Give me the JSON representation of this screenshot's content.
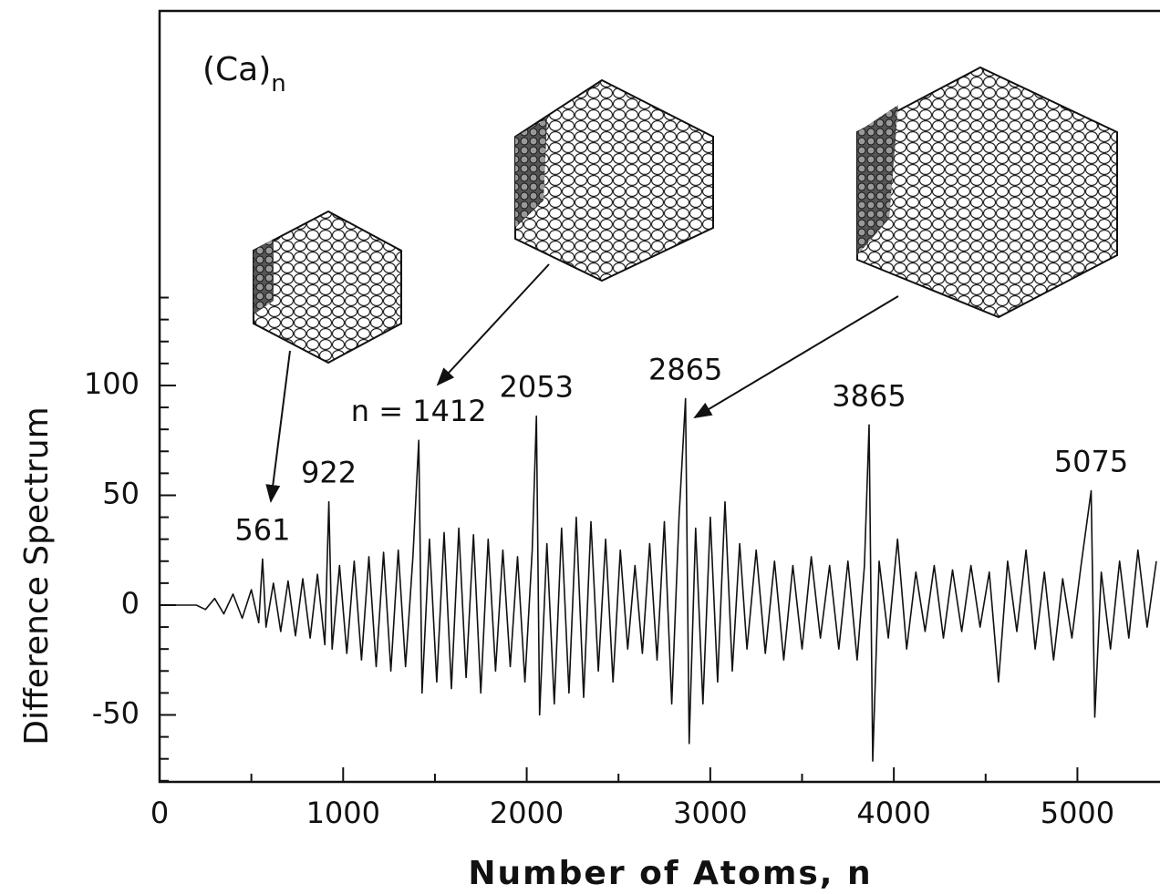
{
  "chart_data": {
    "type": "line",
    "title": "(Ca)",
    "title_subscript": "n",
    "x_label": "Number of Atoms, n",
    "y_label": "Difference Spectrum",
    "xlim": [
      0,
      5450
    ],
    "ylim": [
      -80.5,
      270.5
    ],
    "xticks": [
      0,
      1000,
      2000,
      3000,
      4000,
      5000
    ],
    "yticks": [
      -50,
      0,
      50,
      100
    ],
    "xminorticks": [
      500,
      1500,
      2500,
      3500,
      4500
    ],
    "yminorticks": [
      -80,
      -70,
      -60,
      -40,
      -30,
      -20,
      -10,
      10,
      20,
      30,
      40,
      60,
      70,
      80,
      90,
      110,
      120,
      130,
      140
    ],
    "color": "#111111",
    "annotations": [
      {
        "text": "561",
        "x": 561
      },
      {
        "text": "922",
        "x": 922
      },
      {
        "text": "n = 1412",
        "x": 1412
      },
      {
        "text": "2053",
        "x": 2053
      },
      {
        "text": "2865",
        "x": 2865
      },
      {
        "text": "3865",
        "x": 3865
      },
      {
        "text": "5075",
        "x": 5075
      }
    ],
    "x": [
      0,
      200,
      250,
      300,
      350,
      400,
      450,
      500,
      540,
      561,
      580,
      620,
      660,
      700,
      740,
      780,
      820,
      860,
      900,
      922,
      940,
      980,
      1020,
      1060,
      1100,
      1140,
      1180,
      1220,
      1260,
      1300,
      1340,
      1380,
      1412,
      1430,
      1470,
      1510,
      1550,
      1590,
      1630,
      1670,
      1710,
      1750,
      1790,
      1830,
      1870,
      1910,
      1950,
      1990,
      2030,
      2053,
      2070,
      2110,
      2150,
      2190,
      2230,
      2270,
      2310,
      2350,
      2390,
      2430,
      2470,
      2510,
      2550,
      2590,
      2630,
      2670,
      2710,
      2750,
      2790,
      2830,
      2865,
      2885,
      2920,
      2960,
      3000,
      3040,
      3080,
      3120,
      3160,
      3200,
      3250,
      3300,
      3350,
      3400,
      3450,
      3500,
      3550,
      3600,
      3650,
      3700,
      3750,
      3800,
      3840,
      3865,
      3885,
      3920,
      3970,
      4020,
      4070,
      4120,
      4170,
      4220,
      4270,
      4320,
      4370,
      4420,
      4470,
      4520,
      4570,
      4620,
      4670,
      4720,
      4770,
      4820,
      4870,
      4920,
      4970,
      5020,
      5075,
      5095,
      5130,
      5180,
      5230,
      5280,
      5330,
      5380,
      5430
    ],
    "values": [
      0,
      0,
      -2,
      3,
      -4,
      5,
      -6,
      7,
      -8,
      21,
      -10,
      10,
      -12,
      11,
      -14,
      12,
      -15,
      14,
      -18,
      47,
      -20,
      18,
      -22,
      20,
      -25,
      22,
      -28,
      24,
      -30,
      25,
      -28,
      22,
      75,
      -40,
      30,
      -35,
      33,
      -38,
      35,
      -33,
      32,
      -40,
      30,
      -30,
      25,
      -28,
      22,
      -35,
      25,
      86,
      -50,
      28,
      -45,
      35,
      -40,
      40,
      -42,
      38,
      -30,
      30,
      -35,
      25,
      -20,
      18,
      -22,
      28,
      -25,
      38,
      -45,
      40,
      94,
      -63,
      35,
      -45,
      40,
      -35,
      47,
      -30,
      28,
      -20,
      25,
      -22,
      20,
      -25,
      18,
      -20,
      22,
      -15,
      18,
      -20,
      20,
      -25,
      18,
      82,
      -71,
      20,
      -15,
      30,
      -20,
      15,
      -12,
      18,
      -15,
      16,
      -12,
      18,
      -10,
      15,
      -35,
      20,
      -12,
      25,
      -20,
      15,
      -25,
      12,
      -15,
      18,
      52,
      -51,
      15,
      -20,
      20,
      -15,
      25,
      -10,
      20
    ]
  }
}
